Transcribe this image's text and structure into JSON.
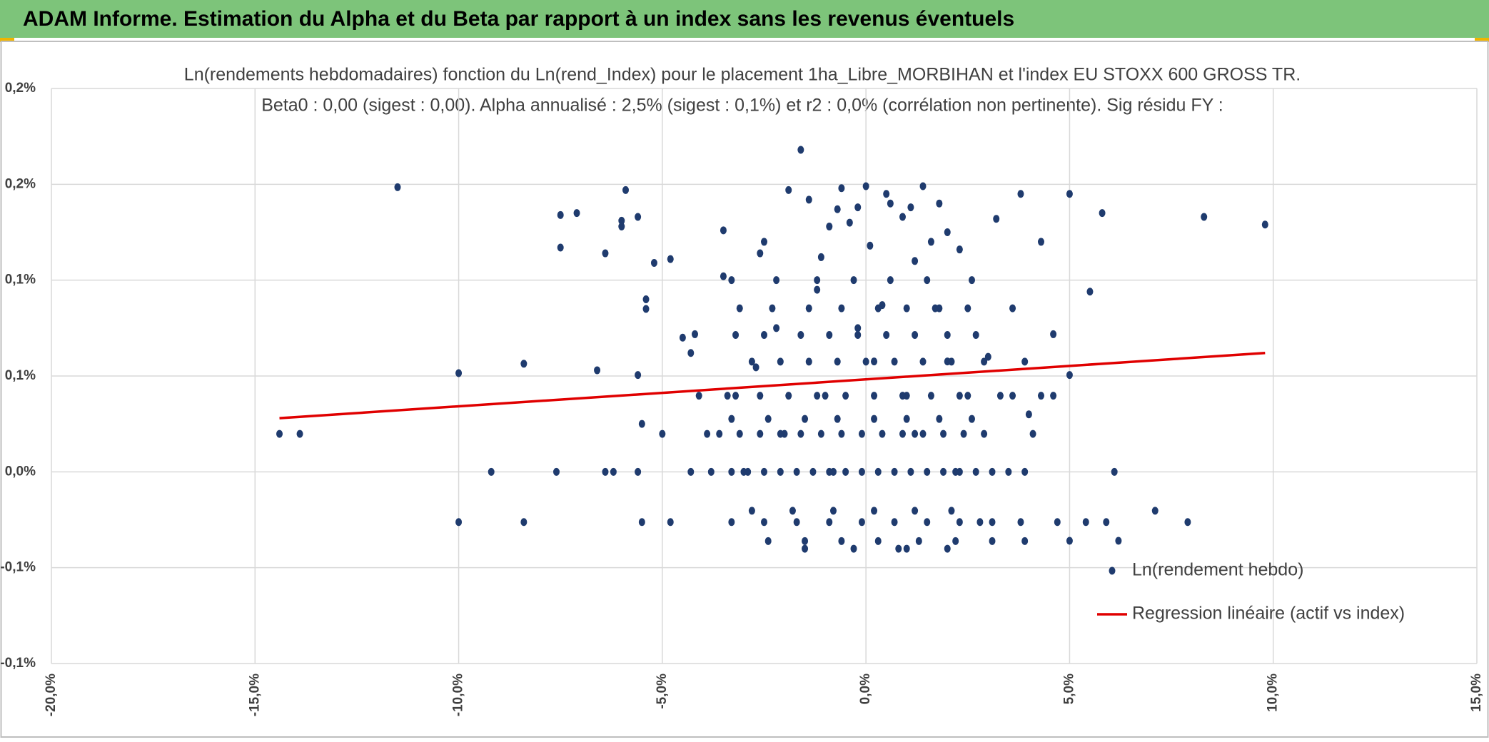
{
  "header": {
    "title": "ADAM Informe. Estimation du Alpha et du Beta par rapport à un index sans les revenus éventuels"
  },
  "chart_data": {
    "type": "scatter",
    "title": "Ln(rendements hebdomadaires) fonction du Ln(rend_Index) pour le placement 1ha_Libre_MORBIHAN et l'index EU STOXX 600 GROSS TR.",
    "subtitle": "Beta0 : 0,00 (sigest : 0,00). Alpha annualisé : 2,5% (sigest : 0,1%) et r2 : 0,0% (corrélation non pertinente). Sig résidu FY :",
    "xlim": [
      -20,
      15
    ],
    "xticks": [
      {
        "value": -20,
        "label": "-20,0%"
      },
      {
        "value": -15,
        "label": "-15,0%"
      },
      {
        "value": -10,
        "label": "-10,0%"
      },
      {
        "value": -5,
        "label": "-5,0%"
      },
      {
        "value": 0,
        "label": "0,0%"
      },
      {
        "value": 5,
        "label": "5,0%"
      },
      {
        "value": 10,
        "label": "10,0%"
      },
      {
        "value": 15,
        "label": "15,0%"
      }
    ],
    "ylim": [
      -0.1,
      0.2
    ],
    "yticks": [
      {
        "value": 0.2,
        "label": "0,2%"
      },
      {
        "value": 0.15,
        "label": "0,2%"
      },
      {
        "value": 0.1,
        "label": "0,1%"
      },
      {
        "value": 0.05,
        "label": "0,1%"
      },
      {
        "value": 0,
        "label": "0,0%"
      },
      {
        "value": -0.05,
        "label": "-0,1%"
      },
      {
        "value": -0.1,
        "label": "-0,1%"
      }
    ],
    "grid": true,
    "legend": "lower right",
    "series": [
      {
        "name": "Ln(rendement hebdo)",
        "type": "scatter",
        "color": "#1f3b6e",
        "x": [
          -14.4,
          -13.9,
          -11.5,
          -10,
          -10,
          -9.2,
          -8.4,
          -8.4,
          -7.5,
          -7.5,
          -7.1,
          -7.6,
          -6.6,
          -6.4,
          -6.4,
          -6.2,
          -6.0,
          -5.9,
          -6.0,
          -5.6,
          -5.6,
          -5.5,
          -5.4,
          -5.4,
          -5.6,
          -5.5,
          -5.2,
          -5.0,
          -4.8,
          -4.5,
          -4.2,
          -4.3,
          -3.9,
          -3.5,
          -3.5,
          -3.2,
          -3.0,
          -2.7,
          -2.5,
          -2.2,
          -2.0,
          -1.9,
          -1.6,
          -1.2,
          -1.0,
          -0.8,
          -0.6,
          -0.4,
          -0.2,
          0,
          0.2,
          0.4,
          0.6,
          0.8,
          1,
          1.2,
          1.4,
          1.6,
          1.8,
          2,
          2.2,
          2.5,
          2.8,
          3,
          3.2,
          3.6,
          3.8,
          4,
          4.3,
          4.6,
          4.6,
          5,
          5,
          5,
          5.5,
          5.8,
          5.9,
          6.1,
          6.2,
          7.1,
          7.9,
          8.3,
          9.8,
          -4.3,
          -3.8,
          -3.3,
          -2.9,
          -2.5,
          -2.1,
          -1.7,
          -1.3,
          -0.9,
          -0.5,
          -0.1,
          0.3,
          0.7,
          1.1,
          1.5,
          1.9,
          2.3,
          2.7,
          3.1,
          3.5,
          3.9,
          -3.6,
          -3.1,
          -2.6,
          -2.1,
          -1.6,
          -1.1,
          -0.6,
          -0.1,
          0.4,
          0.9,
          1.4,
          1.9,
          2.4,
          2.9,
          4.1,
          -3.3,
          -2.4,
          -1.5,
          -0.7,
          0.2,
          1.0,
          1.8,
          2.6,
          -4.1,
          -3.4,
          -2.6,
          -1.9,
          -1.2,
          -0.5,
          0.2,
          0.9,
          1.6,
          2.3,
          3.3,
          4.3,
          -2.8,
          -2.1,
          -1.4,
          -0.7,
          0,
          0.7,
          1.4,
          2.1,
          2.9,
          3.9,
          -3.2,
          -2.5,
          -1.6,
          -0.9,
          -0.2,
          0.5,
          1.2,
          2.0,
          2.7,
          -3.1,
          -2.3,
          -1.4,
          -0.6,
          0.3,
          1.0,
          1.7,
          2.5,
          3.6,
          -3.3,
          -2.2,
          -1.2,
          -0.3,
          0.6,
          1.5,
          2.6,
          -2.8,
          -1.8,
          -0.8,
          0.2,
          1.2,
          2.1,
          -4.8,
          -3.3,
          -2.5,
          -1.7,
          -0.9,
          -0.1,
          0.7,
          1.5,
          2.3,
          3.1,
          3.8,
          4.7,
          5.4,
          -2.4,
          -1.5,
          -0.6,
          0.3,
          1.3,
          2.2,
          3.1,
          3.9,
          -1.5,
          -0.3,
          1.0,
          2.0,
          -2.6,
          -1.1,
          0.1,
          1.2,
          2.3,
          -0.9,
          0.9,
          2.0,
          -0.2,
          1.8,
          -1.4,
          0.5,
          -0.7,
          1.1
        ],
        "values": [
          0.0198,
          0.0198,
          0.1485,
          0.0515,
          -0.0262,
          0,
          0.0564,
          -0.0262,
          0.134,
          0.117,
          0.135,
          0,
          0.053,
          0.114,
          0,
          0,
          0.131,
          0.147,
          0.128,
          0.133,
          0.0505,
          0.025,
          0.09,
          0.085,
          0,
          -0.0262,
          0.109,
          0.0198,
          0.111,
          0.07,
          0.0718,
          0.062,
          0.0198,
          0.126,
          0.102,
          0.0397,
          0,
          0.0545,
          0.12,
          0.075,
          0.0198,
          0.147,
          0.168,
          0.095,
          0.0397,
          0,
          0.148,
          0.13,
          0.075,
          0.149,
          0.0576,
          0.087,
          0.14,
          -0.0401,
          0.0397,
          0.0198,
          0.149,
          0.12,
          0.0853,
          0.0576,
          0,
          0.0397,
          -0.0262,
          0.06,
          0.132,
          0.0397,
          0.145,
          0.03,
          0.12,
          0.0718,
          0.0397,
          0.145,
          0.0505,
          -0.036,
          0.094,
          0.135,
          -0.0262,
          0,
          -0.036,
          -0.0203,
          -0.0262,
          0.133,
          0.129,
          0,
          0,
          0,
          0,
          0,
          0,
          0,
          0,
          0,
          0,
          0,
          0,
          0,
          0,
          0,
          0,
          0,
          0,
          0,
          0,
          0,
          0.0198,
          0.0198,
          0.0198,
          0.0198,
          0.0198,
          0.0198,
          0.0198,
          0.0198,
          0.0198,
          0.0198,
          0.0198,
          0.0198,
          0.0198,
          0.0198,
          0.0198,
          0.0276,
          0.0276,
          0.0276,
          0.0276,
          0.0276,
          0.0276,
          0.0276,
          0.0276,
          0.0397,
          0.0397,
          0.0397,
          0.0397,
          0.0397,
          0.0397,
          0.0397,
          0.0397,
          0.0397,
          0.0397,
          0.0397,
          0.0397,
          0.0575,
          0.0575,
          0.0575,
          0.0575,
          0.0575,
          0.0575,
          0.0575,
          0.0575,
          0.0575,
          0.0575,
          0.0714,
          0.0714,
          0.0714,
          0.0714,
          0.0714,
          0.0714,
          0.0714,
          0.0714,
          0.0714,
          0.0853,
          0.0853,
          0.0853,
          0.0853,
          0.0853,
          0.0853,
          0.0853,
          0.0853,
          0.0853,
          0.1,
          0.1,
          0.1,
          0.1,
          0.1,
          0.1,
          0.1,
          -0.0203,
          -0.0203,
          -0.0203,
          -0.0203,
          -0.0203,
          -0.0203,
          -0.0262,
          -0.0262,
          -0.0262,
          -0.0262,
          -0.0262,
          -0.0262,
          -0.0262,
          -0.0262,
          -0.0262,
          -0.0262,
          -0.0262,
          -0.0262,
          -0.0262,
          -0.0361,
          -0.0361,
          -0.0361,
          -0.0361,
          -0.0361,
          -0.0361,
          -0.0361,
          -0.0361,
          -0.0401,
          -0.0401,
          -0.0401,
          -0.0401,
          0.114,
          0.112,
          0.118,
          0.11,
          0.116,
          0.128,
          0.133,
          0.125,
          0.138,
          0.14,
          0.142,
          0.145,
          0.137,
          0.138
        ]
      },
      {
        "name": "Regression linéaire (actif vs index)",
        "type": "line",
        "color": "#e00000",
        "x": [
          -14.4,
          9.8
        ],
        "values": [
          0.028,
          0.062
        ]
      }
    ]
  }
}
